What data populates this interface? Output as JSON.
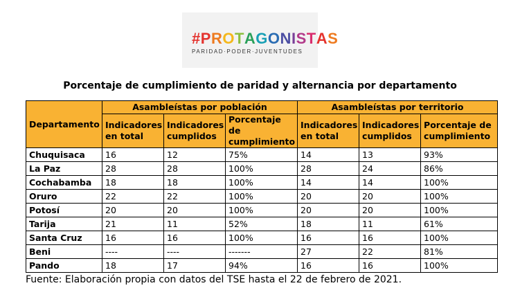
{
  "logo": {
    "hash": "#",
    "letters": [
      {
        "ch": "P",
        "color": "#e4332e"
      },
      {
        "ch": "R",
        "color": "#ee7a1f"
      },
      {
        "ch": "O",
        "color": "#f4b81c"
      },
      {
        "ch": "T",
        "color": "#8cbf3f"
      },
      {
        "ch": "A",
        "color": "#2aa05a"
      },
      {
        "ch": "G",
        "color": "#19a0b5"
      },
      {
        "ch": "O",
        "color": "#2b6db3"
      },
      {
        "ch": "N",
        "color": "#4c4fa3"
      },
      {
        "ch": "I",
        "color": "#7a3f98"
      },
      {
        "ch": "S",
        "color": "#b23a8a"
      },
      {
        "ch": "T",
        "color": "#d92e6f"
      },
      {
        "ch": "A",
        "color": "#e4332e"
      },
      {
        "ch": "S",
        "color": "#ee7a1f"
      }
    ],
    "hash_color": "#e4332e",
    "tagline": "PARIDAD·PODER·JUVENTUDES"
  },
  "title": "Porcentaje de cumplimiento de paridad y alternancia por departamento",
  "table": {
    "header_color": "#f9b233",
    "dept_header": "Departamento",
    "group_poblacion": "Asambleístas por población",
    "group_territorio": "Asambleístas por territorio",
    "col_total": "Indicadores en total",
    "col_cumplidos": "Indicadores cumplidos",
    "col_porcentaje": "Porcentaje de cumplimiento",
    "rows": [
      {
        "dep": "Chuquisaca",
        "p_total": "16",
        "p_cumpl": "12",
        "p_pct": "75%",
        "t_total": "14",
        "t_cumpl": "13",
        "t_pct": "93%"
      },
      {
        "dep": "La Paz",
        "p_total": "28",
        "p_cumpl": "28",
        "p_pct": "100%",
        "t_total": "28",
        "t_cumpl": "24",
        "t_pct": "86%"
      },
      {
        "dep": "Cochabamba",
        "p_total": "18",
        "p_cumpl": "18",
        "p_pct": "100%",
        "t_total": "14",
        "t_cumpl": "14",
        "t_pct": "100%"
      },
      {
        "dep": "Oruro",
        "p_total": "22",
        "p_cumpl": "22",
        "p_pct": "100%",
        "t_total": "20",
        "t_cumpl": "20",
        "t_pct": "100%"
      },
      {
        "dep": "Potosí",
        "p_total": "20",
        "p_cumpl": "20",
        "p_pct": "100%",
        "t_total": "20",
        "t_cumpl": "20",
        "t_pct": "100%"
      },
      {
        "dep": "Tarija",
        "p_total": "21",
        "p_cumpl": "11",
        "p_pct": "52%",
        "t_total": "18",
        "t_cumpl": "11",
        "t_pct": "61%"
      },
      {
        "dep": "Santa Cruz",
        "p_total": "16",
        "p_cumpl": "16",
        "p_pct": "100%",
        "t_total": "16",
        "t_cumpl": "16",
        "t_pct": "100%"
      },
      {
        "dep": "Beni",
        "p_total": "----",
        "p_cumpl": "----",
        "p_pct": "-------",
        "t_total": "27",
        "t_cumpl": "22",
        "t_pct": "81%"
      },
      {
        "dep": "Pando",
        "p_total": "18",
        "p_cumpl": "17",
        "p_pct": "94%",
        "t_total": "16",
        "t_cumpl": "16",
        "t_pct": "100%"
      }
    ]
  },
  "source": "Fuente: Elaboración propia con datos del TSE hasta el 22 de febrero de 2021."
}
